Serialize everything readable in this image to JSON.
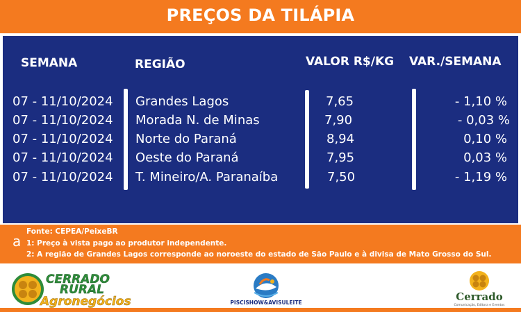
{
  "header": {
    "title": "PREÇOS DA TILÁPIA"
  },
  "table": {
    "columns": {
      "week": "SEMANA",
      "region": "REGIÃO",
      "value": "VALOR R$/KG",
      "variation": "VAR./SEMANA"
    },
    "rows": [
      {
        "week": "07 - 11/10/2024",
        "region": "Grandes Lagos",
        "value": "7,65",
        "variation": "- 1,10 %"
      },
      {
        "week": "07 - 11/10/2024",
        "region": "Morada N. de Minas",
        "value": "7,90",
        "variation": "- 0,03 %"
      },
      {
        "week": "07 - 11/10/2024",
        "region": "Norte do Paraná",
        "value": "8,94",
        "variation": "0,10 %"
      },
      {
        "week": "07 - 11/10/2024",
        "region": "Oeste do Paraná",
        "value": "7,95",
        "variation": "0,03 %"
      },
      {
        "week": "07 - 11/10/2024",
        "region": "T. Mineiro/A. Paranaíba",
        "value": "7,50",
        "variation": "- 1,19 %"
      }
    ]
  },
  "footer": {
    "mark": "a",
    "source": "Fonte: CEPEA/PeixeBR",
    "note1": "1: Preço à vista pago ao produtor independente.",
    "note2": "2: A região de Grandes Lagos corresponde ao noroeste do estado de São Paulo e à divisa de Mato Grosso do Sul."
  },
  "logos": {
    "cerrado_rural": {
      "line1": "CERRADO",
      "line2": "RURAL",
      "line3": "Agronegócios"
    },
    "piscishow": {
      "label": "PISCISHOW&AVISULEITE"
    },
    "cerrado": {
      "name": "Cerrado",
      "tagline": "Comunicação, Editora e Eventos"
    }
  },
  "colors": {
    "orange": "#f47a1f",
    "navy": "#1b2d80",
    "white": "#ffffff"
  }
}
